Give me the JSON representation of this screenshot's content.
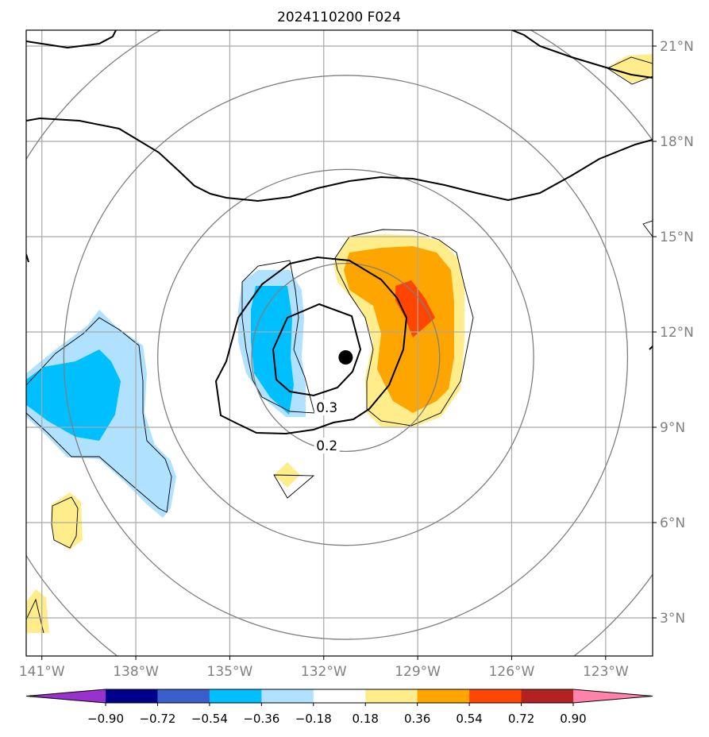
{
  "title": "2024110200 F024",
  "map": {
    "lon_range": [
      -141.5,
      -121.5
    ],
    "lat_range": [
      1.8,
      21.5
    ],
    "lon_ticks": [
      {
        "value": -141,
        "label": "141°W"
      },
      {
        "value": -138,
        "label": "138°W"
      },
      {
        "value": -135,
        "label": "135°W"
      },
      {
        "value": -132,
        "label": "132°W"
      },
      {
        "value": -129,
        "label": "129°W"
      },
      {
        "value": -126,
        "label": "126°W"
      },
      {
        "value": -123,
        "label": "123°W"
      }
    ],
    "lat_ticks": [
      {
        "value": 21,
        "label": "21°N"
      },
      {
        "value": 18,
        "label": "18°N"
      },
      {
        "value": 15,
        "label": "15°N"
      },
      {
        "value": 12,
        "label": "12°N"
      },
      {
        "value": 9,
        "label": "9°N"
      },
      {
        "value": 6,
        "label": "6°N"
      },
      {
        "value": 3,
        "label": "3°N"
      }
    ],
    "storm_center": {
      "lon": -131.3,
      "lat": 11.2
    },
    "range_rings_deg": [
      3,
      6,
      9,
      12
    ],
    "contour_labels": [
      {
        "text": "0.3",
        "lon": -131.9,
        "lat": 9.6
      },
      {
        "text": "0.2",
        "lon": -131.9,
        "lat": 8.4
      }
    ],
    "grid": true
  },
  "colorbar": {
    "ticks": [
      "−0.90",
      "−0.72",
      "−0.54",
      "−0.36",
      "−0.18",
      "0.18",
      "0.36",
      "0.54",
      "0.72",
      "0.90"
    ],
    "colors": [
      "#9932cc",
      "#00008b",
      "#3a5fcd",
      "#00bfff",
      "#b0e2ff",
      "#ffffff",
      "#ffec8b",
      "#ffa500",
      "#ff4500",
      "#b22222",
      "#ff82ab"
    ],
    "extend": "both"
  }
}
